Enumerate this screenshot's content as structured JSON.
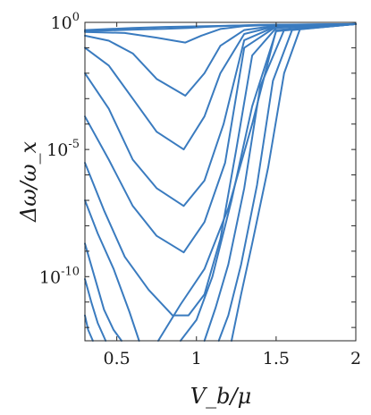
{
  "chart_data": {
    "type": "line",
    "title": "",
    "xlabel": "V_b/μ",
    "ylabel": "Δω/ω_x",
    "x_scale": "linear",
    "y_scale": "log",
    "xlim": [
      0.3,
      2.0
    ],
    "ylim": [
      3e-13,
      1.0
    ],
    "grid": false,
    "x_ticks": [
      {
        "value": 0.5,
        "label": "0.5"
      },
      {
        "value": 1.0,
        "label": "1"
      },
      {
        "value": 1.5,
        "label": "1.5"
      },
      {
        "value": 2.0,
        "label": "2"
      }
    ],
    "y_ticks": [
      {
        "value": 1,
        "base": "10",
        "exponent": "0"
      },
      {
        "value": 1e-05,
        "base": "10",
        "exponent": "-5"
      },
      {
        "value": 1e-10,
        "base": "10",
        "exponent": "-10"
      }
    ],
    "color": "#3a7bbf",
    "series": [
      {
        "x": [
          0.3,
          0.6,
          0.8,
          0.95,
          1.1,
          1.4,
          2.0
        ],
        "y": [
          0.5,
          0.6,
          0.66,
          0.69,
          0.72,
          0.78,
          0.86
        ]
      },
      {
        "x": [
          0.3,
          0.6,
          0.8,
          0.95,
          1.05,
          1.2,
          1.4,
          2.0
        ],
        "y": [
          0.45,
          0.52,
          0.56,
          0.6,
          0.66,
          0.73,
          0.8,
          0.86
        ]
      },
      {
        "x": [
          0.3,
          0.55,
          0.75,
          0.93,
          1.03,
          1.15,
          1.3,
          1.5,
          2.0
        ],
        "y": [
          0.42,
          0.38,
          0.25,
          0.16,
          0.3,
          0.55,
          0.72,
          0.8,
          0.86
        ]
      },
      {
        "x": [
          0.3,
          0.45,
          0.6,
          0.75,
          0.93,
          1.05,
          1.15,
          1.3,
          1.5,
          2.0
        ],
        "y": [
          0.3,
          0.19,
          0.06,
          0.006,
          0.0013,
          0.01,
          0.12,
          0.5,
          0.75,
          0.86
        ]
      },
      {
        "x": [
          0.3,
          0.45,
          0.6,
          0.75,
          0.92,
          1.05,
          1.15,
          1.3,
          1.5,
          2.0
        ],
        "y": [
          0.1,
          0.02,
          0.001,
          5e-05,
          1e-05,
          0.0002,
          0.01,
          0.35,
          0.72,
          0.86
        ]
      },
      {
        "x": [
          0.3,
          0.45,
          0.6,
          0.75,
          0.92,
          1.05,
          1.17,
          1.3,
          1.5,
          2.0
        ],
        "y": [
          0.01,
          0.0004,
          4e-06,
          3e-07,
          6e-08,
          6e-07,
          0.0001,
          0.2,
          0.7,
          0.86
        ]
      },
      {
        "x": [
          0.3,
          0.45,
          0.6,
          0.75,
          0.92,
          1.05,
          1.18,
          1.3,
          1.5,
          2.0
        ],
        "y": [
          0.0002,
          4e-06,
          6e-08,
          4e-09,
          9e-10,
          1.4e-08,
          3e-06,
          0.1,
          0.68,
          0.86
        ]
      },
      {
        "x": [
          0.3,
          0.42,
          0.55,
          0.7,
          0.85,
          0.95,
          1.05,
          1.15,
          1.25,
          1.35,
          1.5,
          2.0
        ],
        "y": [
          3e-06,
          4e-08,
          6e-10,
          3e-11,
          3e-12,
          3e-12,
          2e-11,
          3e-09,
          1e-05,
          0.05,
          0.6,
          0.86
        ]
      },
      {
        "x": [
          0.3,
          0.38,
          0.48,
          0.58,
          0.64
        ],
        "y": [
          1e-07,
          5e-09,
          2e-10,
          4e-12,
          3e-13
        ]
      },
      {
        "x": [
          0.76,
          0.9,
          1.05,
          1.2,
          1.35,
          1.5,
          2.0
        ],
        "y": [
          3e-13,
          8e-12,
          2e-10,
          5e-08,
          0.0001,
          0.5,
          0.86
        ]
      },
      {
        "x": [
          0.3,
          0.36,
          0.42,
          0.48,
          0.53
        ],
        "y": [
          2e-09,
          1e-10,
          5e-12,
          8e-13,
          3e-13
        ]
      },
      {
        "x": [
          0.9,
          1.0,
          1.1,
          1.22,
          1.35,
          1.5,
          2.0
        ],
        "y": [
          3e-13,
          2e-12,
          1e-10,
          1e-07,
          0.0005,
          0.45,
          0.86
        ]
      },
      {
        "x": [
          0.3,
          0.34,
          0.38,
          0.43
        ],
        "y": [
          8e-11,
          1e-11,
          1.5e-12,
          3e-13
        ]
      },
      {
        "x": [
          1.05,
          1.12,
          1.2,
          1.3,
          1.4,
          1.55,
          2.0
        ],
        "y": [
          3e-13,
          6e-12,
          3e-10,
          3e-07,
          0.003,
          0.5,
          0.86
        ]
      },
      {
        "x": [
          0.3,
          0.32,
          0.35
        ],
        "y": [
          3e-12,
          8e-13,
          3e-13
        ]
      },
      {
        "x": [
          1.14,
          1.2,
          1.28,
          1.38,
          1.48,
          1.6,
          2.0
        ],
        "y": [
          3e-13,
          3e-12,
          3e-10,
          4e-07,
          0.005,
          0.5,
          0.86
        ]
      },
      {
        "x": [
          1.22,
          1.28,
          1.35,
          1.45,
          1.55,
          1.65,
          2.0
        ],
        "y": [
          3e-13,
          2e-11,
          2e-09,
          2e-06,
          0.01,
          0.55,
          0.86
        ]
      }
    ]
  }
}
